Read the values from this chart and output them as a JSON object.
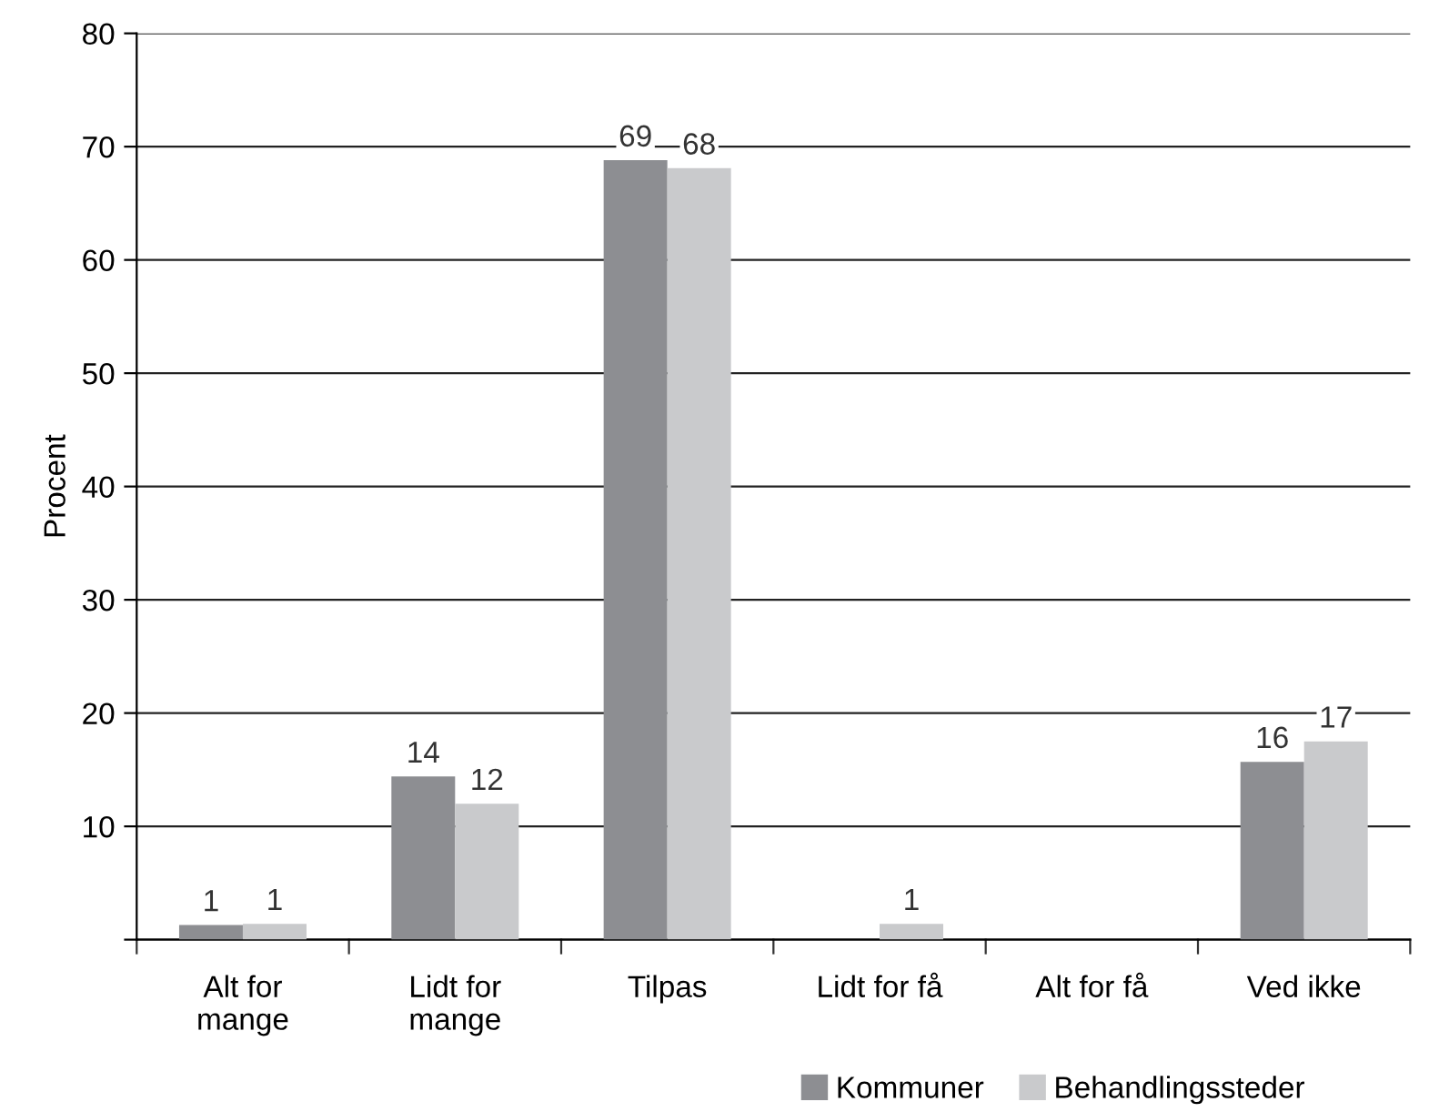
{
  "chart_data": {
    "type": "bar",
    "ylabel": "Procent",
    "categories": [
      "Alt for\nmange",
      "Lidt for\nmange",
      "Tilpas",
      "Lidt for få",
      "Alt for få",
      "Ved ikke"
    ],
    "series": [
      {
        "name": "Kommuner",
        "color": "#8d8e92",
        "values": [
          1.3,
          14.4,
          68.8,
          null,
          null,
          15.7
        ],
        "value_labels": [
          "1",
          "14",
          "69",
          null,
          null,
          "16"
        ]
      },
      {
        "name": "Behandlingssteder",
        "color": "#c9cacc",
        "values": [
          1.4,
          12.0,
          68.1,
          1.4,
          null,
          17.5
        ],
        "value_labels": [
          "1",
          "12",
          "68",
          "1",
          null,
          "17"
        ]
      }
    ],
    "ylim": [
      0,
      80
    ],
    "yticks": [
      {
        "value": 0,
        "label": null
      },
      10,
      20,
      30,
      40,
      50,
      60,
      70,
      80
    ],
    "grid": "y",
    "legend": "bottom"
  }
}
